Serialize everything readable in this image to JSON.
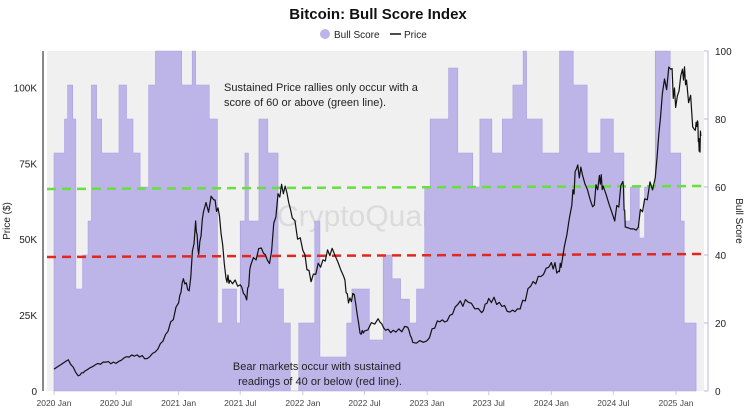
{
  "chart_data": {
    "type": "area+line",
    "title": "Bitcoin: Bull Score Index",
    "legend": {
      "placement": "top-center",
      "items": [
        "Bull Score",
        "Price"
      ]
    },
    "y_left": {
      "label": "Price ($)",
      "range": [
        0,
        112000
      ],
      "ticks": [
        0,
        25000,
        50000,
        75000,
        100000
      ],
      "tick_labels": [
        "0",
        "25K",
        "50K",
        "75K",
        "100K"
      ]
    },
    "y_right": {
      "label": "Bull Score",
      "range": [
        0,
        100
      ],
      "ticks": [
        0,
        20,
        40,
        60,
        80,
        100
      ],
      "tick_labels": [
        "0",
        "20",
        "40",
        "60",
        "80",
        "100"
      ]
    },
    "x_axis": {
      "ticks": [
        "2020-01-01",
        "2020-07-01",
        "2021-01-01",
        "2021-07-01",
        "2022-01-01",
        "2022-07-01",
        "2023-01-01",
        "2023-07-01",
        "2024-01-01",
        "2024-07-01",
        "2025-01-01"
      ],
      "tick_labels": [
        "2020 Jan",
        "2020 Jul",
        "2021 Jan",
        "2021 Jul",
        "2022 Jan",
        "2022 Jul",
        "2023 Jan",
        "2023 Jul",
        "2024 Jan",
        "2024 Jul",
        "2025 Jan"
      ]
    },
    "colors": {
      "bull_score": "#bdb5e8",
      "price": "#111111",
      "green_line": "#66e03c",
      "red_line": "#e0281e",
      "background": "#f0f0f0"
    },
    "reference_lines": [
      {
        "value": 60,
        "color": "green"
      },
      {
        "value": 40,
        "color": "red"
      }
    ],
    "watermark": "CryptoQuant",
    "annotations": [
      [
        "Sustained Price rallies only occur with a",
        "score of 60 or above (green line)."
      ],
      [
        "Bear markets occur with sustained",
        "readings of 40 or below (red line)."
      ]
    ],
    "grid": false,
    "bull_score": [
      [
        "2020-01-01",
        70
      ],
      [
        "2020-02-01",
        80
      ],
      [
        "2020-02-10",
        90
      ],
      [
        "2020-02-25",
        80
      ],
      [
        "2020-03-05",
        30
      ],
      [
        "2020-03-25",
        40
      ],
      [
        "2020-04-10",
        50
      ],
      [
        "2020-04-20",
        90
      ],
      [
        "2020-05-05",
        80
      ],
      [
        "2020-05-20",
        70
      ],
      [
        "2020-07-10",
        90
      ],
      [
        "2020-08-01",
        80
      ],
      [
        "2020-08-20",
        70
      ],
      [
        "2020-09-10",
        60
      ],
      [
        "2020-10-05",
        90
      ],
      [
        "2020-10-25",
        100
      ],
      [
        "2021-01-10",
        90
      ],
      [
        "2021-02-10",
        100
      ],
      [
        "2021-02-20",
        90
      ],
      [
        "2021-04-01",
        80
      ],
      [
        "2021-04-25",
        20
      ],
      [
        "2021-05-10",
        30
      ],
      [
        "2021-06-20",
        20
      ],
      [
        "2021-07-01",
        50
      ],
      [
        "2021-07-15",
        70
      ],
      [
        "2021-07-25",
        50
      ],
      [
        "2021-08-25",
        80
      ],
      [
        "2021-09-20",
        70
      ],
      [
        "2021-10-20",
        30
      ],
      [
        "2021-11-05",
        20
      ],
      [
        "2021-11-25",
        0
      ],
      [
        "2021-12-20",
        20
      ],
      [
        "2022-02-05",
        50
      ],
      [
        "2022-02-20",
        10
      ],
      [
        "2022-05-10",
        20
      ],
      [
        "2022-05-25",
        30
      ],
      [
        "2022-07-01",
        30
      ],
      [
        "2022-07-15",
        15
      ],
      [
        "2022-08-25",
        40
      ],
      [
        "2022-09-20",
        33
      ],
      [
        "2022-10-15",
        27
      ],
      [
        "2022-11-10",
        20
      ],
      [
        "2022-12-01",
        30
      ],
      [
        "2022-12-25",
        60
      ],
      [
        "2023-01-10",
        80
      ],
      [
        "2023-03-05",
        95
      ],
      [
        "2023-04-01",
        70
      ],
      [
        "2023-05-15",
        60
      ],
      [
        "2023-06-05",
        80
      ],
      [
        "2023-07-10",
        70
      ],
      [
        "2023-08-10",
        80
      ],
      [
        "2023-09-10",
        90
      ],
      [
        "2023-10-10",
        100
      ],
      [
        "2023-10-20",
        80
      ],
      [
        "2023-12-05",
        70
      ],
      [
        "2024-01-25",
        100
      ],
      [
        "2024-03-05",
        90
      ],
      [
        "2024-04-15",
        70
      ],
      [
        "2024-05-25",
        80
      ],
      [
        "2024-07-01",
        70
      ],
      [
        "2024-08-01",
        50
      ],
      [
        "2024-08-20",
        60
      ],
      [
        "2024-09-15",
        45
      ],
      [
        "2024-10-01",
        60
      ],
      [
        "2024-11-01",
        100
      ],
      [
        "2024-12-15",
        70
      ],
      [
        "2025-01-15",
        50
      ],
      [
        "2025-01-25",
        20
      ],
      [
        "2025-03-01",
        20
      ]
    ],
    "price": [
      [
        "2020-01-01",
        7200
      ],
      [
        "2020-02-12",
        10300
      ],
      [
        "2020-03-12",
        5000
      ],
      [
        "2020-04-01",
        6600
      ],
      [
        "2020-05-01",
        8600
      ],
      [
        "2020-06-01",
        9500
      ],
      [
        "2020-07-01",
        9100
      ],
      [
        "2020-08-01",
        11300
      ],
      [
        "2020-09-01",
        11900
      ],
      [
        "2020-10-01",
        10700
      ],
      [
        "2020-11-01",
        13800
      ],
      [
        "2020-12-01",
        19700
      ],
      [
        "2021-01-01",
        29000
      ],
      [
        "2021-01-15",
        37000
      ],
      [
        "2021-02-01",
        33000
      ],
      [
        "2021-02-20",
        56000
      ],
      [
        "2021-03-01",
        45000
      ],
      [
        "2021-03-15",
        59000
      ],
      [
        "2021-04-14",
        63000
      ],
      [
        "2021-05-01",
        57700
      ],
      [
        "2021-05-20",
        37300
      ],
      [
        "2021-06-01",
        36500
      ],
      [
        "2021-07-01",
        35000
      ],
      [
        "2021-07-20",
        30000
      ],
      [
        "2021-08-01",
        41500
      ],
      [
        "2021-09-01",
        47100
      ],
      [
        "2021-09-25",
        42000
      ],
      [
        "2021-10-20",
        65000
      ],
      [
        "2021-11-10",
        67500
      ],
      [
        "2021-12-01",
        57000
      ],
      [
        "2022-01-01",
        46300
      ],
      [
        "2022-01-25",
        36000
      ],
      [
        "2022-02-01",
        38500
      ],
      [
        "2022-03-01",
        43200
      ],
      [
        "2022-03-28",
        47000
      ],
      [
        "2022-05-01",
        37700
      ],
      [
        "2022-05-15",
        29000
      ],
      [
        "2022-06-01",
        31800
      ],
      [
        "2022-06-18",
        19000
      ],
      [
        "2022-07-01",
        19800
      ],
      [
        "2022-08-10",
        23800
      ],
      [
        "2022-09-01",
        20000
      ],
      [
        "2022-10-01",
        19400
      ],
      [
        "2022-11-05",
        21000
      ],
      [
        "2022-11-20",
        16000
      ],
      [
        "2022-12-31",
        16500
      ],
      [
        "2023-01-31",
        23100
      ],
      [
        "2023-03-01",
        23100
      ],
      [
        "2023-04-01",
        28500
      ],
      [
        "2023-05-01",
        29300
      ],
      [
        "2023-06-10",
        25800
      ],
      [
        "2023-07-01",
        30500
      ],
      [
        "2023-08-01",
        29200
      ],
      [
        "2023-09-01",
        26000
      ],
      [
        "2023-10-01",
        27000
      ],
      [
        "2023-11-01",
        34500
      ],
      [
        "2023-12-01",
        37700
      ],
      [
        "2024-01-01",
        42300
      ],
      [
        "2024-01-22",
        39500
      ],
      [
        "2024-02-01",
        42600
      ],
      [
        "2024-03-01",
        61200
      ],
      [
        "2024-03-14",
        73000
      ],
      [
        "2024-04-01",
        71300
      ],
      [
        "2024-05-01",
        60700
      ],
      [
        "2024-05-21",
        71000
      ],
      [
        "2024-06-01",
        67500
      ],
      [
        "2024-07-05",
        56000
      ],
      [
        "2024-07-29",
        69000
      ],
      [
        "2024-08-05",
        54000
      ],
      [
        "2024-09-06",
        53000
      ],
      [
        "2024-10-01",
        63300
      ],
      [
        "2024-11-01",
        70200
      ],
      [
        "2024-11-22",
        98000
      ],
      [
        "2024-12-17",
        106000
      ],
      [
        "2024-12-31",
        93400
      ],
      [
        "2025-01-20",
        106000
      ],
      [
        "2025-02-01",
        102400
      ],
      [
        "2025-02-25",
        86000
      ],
      [
        "2025-03-05",
        89000
      ],
      [
        "2025-03-10",
        79000
      ],
      [
        "2025-03-15",
        84000
      ]
    ]
  }
}
